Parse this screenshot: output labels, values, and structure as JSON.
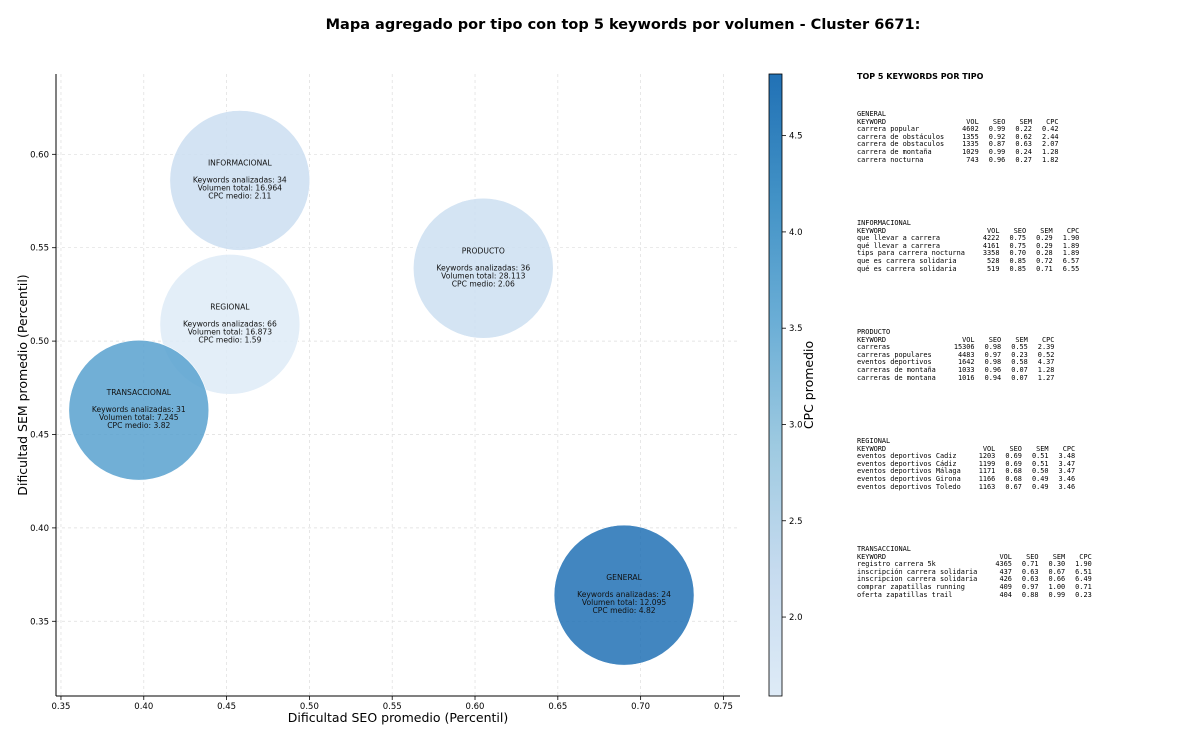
{
  "title": "Mapa agregado por tipo con top 5 keywords por volumen - Cluster 6671:",
  "chart_data": {
    "type": "scatter",
    "variant": "bubble",
    "xlabel": "Dificultad SEO promedio (Percentil)",
    "ylabel": "Dificultad SEM promedio (Percentil)",
    "colorbar_label": "CPC promedio",
    "xlim": [
      0.347,
      0.76
    ],
    "ylim": [
      0.31,
      0.643
    ],
    "xticks": [
      "0.35",
      "0.40",
      "0.45",
      "0.50",
      "0.55",
      "0.60",
      "0.65",
      "0.70",
      "0.75"
    ],
    "yticks": [
      "0.35",
      "0.40",
      "0.45",
      "0.50",
      "0.55",
      "0.60"
    ],
    "colorbar_range": [
      1.59,
      4.82
    ],
    "colorbar_ticks": [
      "2.0",
      "2.5",
      "3.0",
      "3.5",
      "4.0",
      "4.5"
    ],
    "grid": true,
    "colormap": [
      "#deebf7",
      "#c6dbef",
      "#9ecae1",
      "#6baed6",
      "#4292c6",
      "#2171b5"
    ],
    "points": [
      {
        "label": "INFORMACIONAL",
        "x": 0.458,
        "y": 0.586,
        "cpc": 2.11,
        "line1": "Keywords analizadas: 34",
        "line2": "Volumen total: 16.964",
        "line3": "CPC medio: 2.11"
      },
      {
        "label": "PRODUCTO",
        "x": 0.605,
        "y": 0.539,
        "cpc": 2.06,
        "line1": "Keywords analizadas: 36",
        "line2": "Volumen total: 28.113",
        "line3": "CPC medio: 2.06"
      },
      {
        "label": "REGIONAL",
        "x": 0.452,
        "y": 0.509,
        "cpc": 1.59,
        "line1": "Keywords analizadas: 66",
        "line2": "Volumen total: 16.873",
        "line3": "CPC medio: 1.59"
      },
      {
        "label": "TRANSACCIONAL",
        "x": 0.397,
        "y": 0.463,
        "cpc": 3.82,
        "line1": "Keywords analizadas: 31",
        "line2": "Volumen total: 7.245",
        "line3": "CPC medio: 3.82"
      },
      {
        "label": "GENERAL",
        "x": 0.69,
        "y": 0.364,
        "cpc": 4.82,
        "line1": "Keywords analizadas: 24",
        "line2": "Volumen total: 12.095",
        "line3": "CPC medio: 4.82"
      }
    ]
  },
  "side_panel": {
    "title": "TOP 5 KEYWORDS POR TIPO",
    "headers": {
      "keyword": "KEYWORD",
      "vol": "VOL",
      "seo": "SEO",
      "sem": "SEM",
      "cpc": "CPC"
    },
    "blocks": [
      {
        "type": "GENERAL",
        "rows": [
          {
            "keyword": "carrera popular",
            "vol": "4602",
            "seo": "0.99",
            "sem": "0.22",
            "cpc": "0.42"
          },
          {
            "keyword": "carrera de obstáculos",
            "vol": "1355",
            "seo": "0.92",
            "sem": "0.62",
            "cpc": "2.44"
          },
          {
            "keyword": "carrera de obstaculos",
            "vol": "1335",
            "seo": "0.87",
            "sem": "0.63",
            "cpc": "2.07"
          },
          {
            "keyword": "carrera de montaña",
            "vol": "1029",
            "seo": "0.99",
            "sem": "0.24",
            "cpc": "1.28"
          },
          {
            "keyword": "carrera nocturna",
            "vol": "743",
            "seo": "0.96",
            "sem": "0.27",
            "cpc": "1.82"
          }
        ]
      },
      {
        "type": "INFORMACIONAL",
        "rows": [
          {
            "keyword": "que llevar a carrera",
            "vol": "4222",
            "seo": "0.75",
            "sem": "0.29",
            "cpc": "1.90"
          },
          {
            "keyword": "qué llevar a carrera",
            "vol": "4161",
            "seo": "0.75",
            "sem": "0.29",
            "cpc": "1.89"
          },
          {
            "keyword": "tips para carrera nocturna",
            "vol": "3358",
            "seo": "0.70",
            "sem": "0.28",
            "cpc": "1.89"
          },
          {
            "keyword": "que es carrera solidaria",
            "vol": "528",
            "seo": "0.85",
            "sem": "0.72",
            "cpc": "6.57"
          },
          {
            "keyword": "qué es carrera solidaria",
            "vol": "519",
            "seo": "0.85",
            "sem": "0.71",
            "cpc": "6.55"
          }
        ]
      },
      {
        "type": "PRODUCTO",
        "rows": [
          {
            "keyword": "carreras",
            "vol": "15306",
            "seo": "0.98",
            "sem": "0.55",
            "cpc": "2.39"
          },
          {
            "keyword": "carreras populares",
            "vol": "4483",
            "seo": "0.97",
            "sem": "0.23",
            "cpc": "0.52"
          },
          {
            "keyword": "eventos deportivos",
            "vol": "1642",
            "seo": "0.98",
            "sem": "0.58",
            "cpc": "4.37"
          },
          {
            "keyword": "carreras de montaña",
            "vol": "1033",
            "seo": "0.96",
            "sem": "0.07",
            "cpc": "1.28"
          },
          {
            "keyword": "carreras de montana",
            "vol": "1016",
            "seo": "0.94",
            "sem": "0.07",
            "cpc": "1.27"
          }
        ]
      },
      {
        "type": "REGIONAL",
        "rows": [
          {
            "keyword": "eventos deportivos Cadiz",
            "vol": "1203",
            "seo": "0.69",
            "sem": "0.51",
            "cpc": "3.48"
          },
          {
            "keyword": "eventos deportivos Cádiz",
            "vol": "1199",
            "seo": "0.69",
            "sem": "0.51",
            "cpc": "3.47"
          },
          {
            "keyword": "eventos deportivos Málaga",
            "vol": "1171",
            "seo": "0.68",
            "sem": "0.50",
            "cpc": "3.47"
          },
          {
            "keyword": "eventos deportivos Girona",
            "vol": "1166",
            "seo": "0.68",
            "sem": "0.49",
            "cpc": "3.46"
          },
          {
            "keyword": "eventos deportivos Toledo",
            "vol": "1163",
            "seo": "0.67",
            "sem": "0.49",
            "cpc": "3.46"
          }
        ]
      },
      {
        "type": "TRANSACCIONAL",
        "rows": [
          {
            "keyword": "registro carrera 5k",
            "vol": "4365",
            "seo": "0.71",
            "sem": "0.30",
            "cpc": "1.90"
          },
          {
            "keyword": "inscripción carrera solidaria",
            "vol": "437",
            "seo": "0.63",
            "sem": "0.67",
            "cpc": "6.51"
          },
          {
            "keyword": "inscripcion carrera solidaria",
            "vol": "426",
            "seo": "0.63",
            "sem": "0.66",
            "cpc": "6.49"
          },
          {
            "keyword": "comprar zapatillas running",
            "vol": "409",
            "seo": "0.97",
            "sem": "1.00",
            "cpc": "0.71"
          },
          {
            "keyword": "oferta zapatillas trail",
            "vol": "404",
            "seo": "0.88",
            "sem": "0.99",
            "cpc": "0.23"
          }
        ]
      }
    ]
  }
}
